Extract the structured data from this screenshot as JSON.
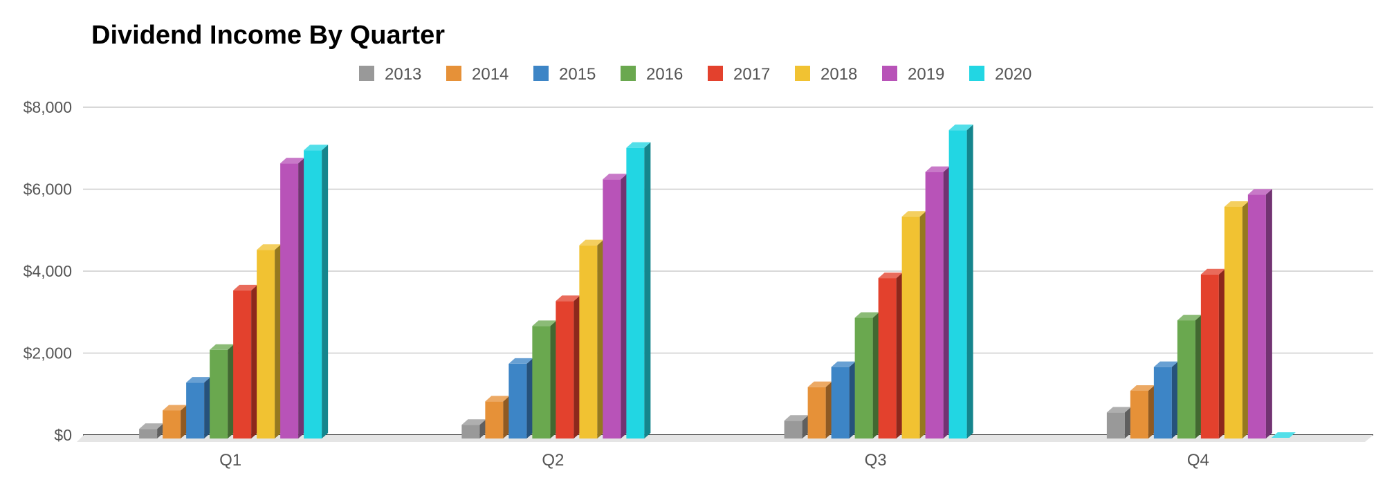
{
  "chart_data": {
    "type": "bar",
    "title": "Dividend Income By Quarter",
    "xlabel": "",
    "ylabel": "",
    "categories": [
      "Q1",
      "Q2",
      "Q3",
      "Q4"
    ],
    "ylim": [
      0,
      8000
    ],
    "yticks": [
      0,
      2000,
      4000,
      6000,
      8000
    ],
    "ytick_labels": [
      "$0",
      "$2,000",
      "$4,000",
      "$6,000",
      "$8,000"
    ],
    "grid": true,
    "legend_position": "top-center",
    "three_d": true,
    "series": [
      {
        "name": "2013",
        "color": "#999999",
        "values": [
          150,
          250,
          350,
          550
        ]
      },
      {
        "name": "2014",
        "color": "#e69138",
        "values": [
          600,
          820,
          1170,
          1080
        ]
      },
      {
        "name": "2015",
        "color": "#3d85c6",
        "values": [
          1280,
          1740,
          1660,
          1660
        ]
      },
      {
        "name": "2016",
        "color": "#6aa84f",
        "values": [
          2080,
          2660,
          2860,
          2800
        ]
      },
      {
        "name": "2017",
        "color": "#e3412d",
        "values": [
          3530,
          3270,
          3830,
          3920
        ]
      },
      {
        "name": "2018",
        "color": "#f1c232",
        "values": [
          4520,
          4630,
          5330,
          5570
        ]
      },
      {
        "name": "2019",
        "color": "#b853b8",
        "values": [
          6630,
          6240,
          6420,
          5870
        ]
      },
      {
        "name": "2020",
        "color": "#22d6e3",
        "values": [
          6950,
          7010,
          7440,
          0
        ]
      }
    ]
  }
}
